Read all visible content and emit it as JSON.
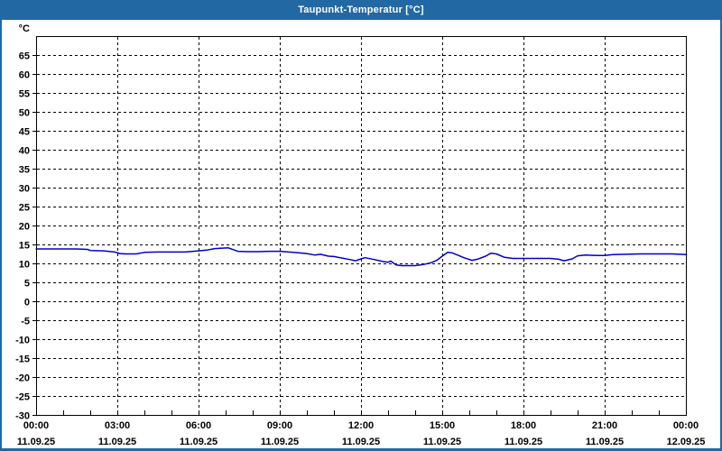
{
  "window": {
    "title": "Taupunkt-Temperatur [°C]"
  },
  "colors": {
    "title_bar": "#2268A2",
    "window_border": "#2268A2",
    "background": "#FFFFFF",
    "axis": "#000000",
    "grid": "#000000",
    "label": "#000000",
    "line": "#0000C8"
  },
  "chart_data": {
    "type": "line",
    "title": "Taupunkt-Temperatur [°C]",
    "ylabel": "°C",
    "ylim": [
      -30,
      70
    ],
    "xlim_hours": [
      0,
      24
    ],
    "grid": "dashed",
    "legend_position": "none",
    "y_ticks": [
      65,
      60,
      55,
      50,
      45,
      40,
      35,
      30,
      25,
      20,
      15,
      10,
      5,
      0,
      -5,
      -10,
      -15,
      -20,
      -25,
      -30
    ],
    "x_minor_tick_every_hours": 1,
    "x_ticks": [
      {
        "hour": 0,
        "time": "00:00",
        "date": "11.09.25"
      },
      {
        "hour": 3,
        "time": "03:00",
        "date": "11.09.25"
      },
      {
        "hour": 6,
        "time": "06:00",
        "date": "11.09.25"
      },
      {
        "hour": 9,
        "time": "09:00",
        "date": "11.09.25"
      },
      {
        "hour": 12,
        "time": "12:00",
        "date": "11.09.25"
      },
      {
        "hour": 15,
        "time": "15:00",
        "date": "11.09.25"
      },
      {
        "hour": 18,
        "time": "18:00",
        "date": "11.09.25"
      },
      {
        "hour": 21,
        "time": "21:00",
        "date": "11.09.25"
      },
      {
        "hour": 24,
        "time": "00:00",
        "date": "12.09.25"
      }
    ],
    "series": [
      {
        "name": "Taupunkt-Temperatur",
        "color": "#0000C8",
        "points": [
          [
            0,
            13.8
          ],
          [
            0.5,
            13.8
          ],
          [
            1,
            13.8
          ],
          [
            1.5,
            13.8
          ],
          [
            1.9,
            13.7
          ],
          [
            2,
            13.4
          ],
          [
            2.5,
            13.3
          ],
          [
            2.9,
            13.0
          ],
          [
            3.1,
            12.6
          ],
          [
            3.3,
            12.5
          ],
          [
            3.7,
            12.5
          ],
          [
            4,
            12.9
          ],
          [
            4.5,
            13.0
          ],
          [
            5,
            13.0
          ],
          [
            5.5,
            13.0
          ],
          [
            5.8,
            13.2
          ],
          [
            6,
            13.3
          ],
          [
            6.3,
            13.5
          ],
          [
            6.6,
            13.9
          ],
          [
            6.8,
            14.0
          ],
          [
            7.1,
            14.1
          ],
          [
            7.3,
            13.6
          ],
          [
            7.45,
            13.2
          ],
          [
            7.8,
            13.1
          ],
          [
            8.2,
            13.1
          ],
          [
            8.6,
            13.2
          ],
          [
            9,
            13.2
          ],
          [
            9.5,
            12.9
          ],
          [
            10,
            12.6
          ],
          [
            10.3,
            12.2
          ],
          [
            10.5,
            12.4
          ],
          [
            10.8,
            11.9
          ],
          [
            11,
            11.8
          ],
          [
            11.3,
            11.4
          ],
          [
            11.6,
            11.0
          ],
          [
            11.8,
            10.7
          ],
          [
            12,
            11.2
          ],
          [
            12.15,
            11.5
          ],
          [
            12.5,
            11.0
          ],
          [
            12.8,
            10.5
          ],
          [
            13,
            10.3
          ],
          [
            13.1,
            10.6
          ],
          [
            13.3,
            9.6
          ],
          [
            13.5,
            9.4
          ],
          [
            14,
            9.4
          ],
          [
            14.3,
            9.7
          ],
          [
            14.6,
            10.2
          ],
          [
            14.8,
            10.8
          ],
          [
            15,
            11.9
          ],
          [
            15.2,
            12.9
          ],
          [
            15.35,
            12.8
          ],
          [
            15.5,
            12.4
          ],
          [
            15.8,
            11.5
          ],
          [
            16.1,
            10.8
          ],
          [
            16.3,
            11.1
          ],
          [
            16.6,
            11.9
          ],
          [
            16.8,
            12.7
          ],
          [
            17,
            12.5
          ],
          [
            17.3,
            11.6
          ],
          [
            17.6,
            11.3
          ],
          [
            18,
            11.3
          ],
          [
            18.5,
            11.3
          ],
          [
            19,
            11.3
          ],
          [
            19.3,
            11.1
          ],
          [
            19.5,
            10.7
          ],
          [
            19.8,
            11.2
          ],
          [
            20,
            12.0
          ],
          [
            20.3,
            12.2
          ],
          [
            20.7,
            12.1
          ],
          [
            21,
            12.1
          ],
          [
            21.3,
            12.3
          ],
          [
            21.8,
            12.4
          ],
          [
            22.3,
            12.5
          ],
          [
            23,
            12.5
          ],
          [
            23.5,
            12.5
          ],
          [
            24,
            12.3
          ]
        ]
      }
    ]
  }
}
